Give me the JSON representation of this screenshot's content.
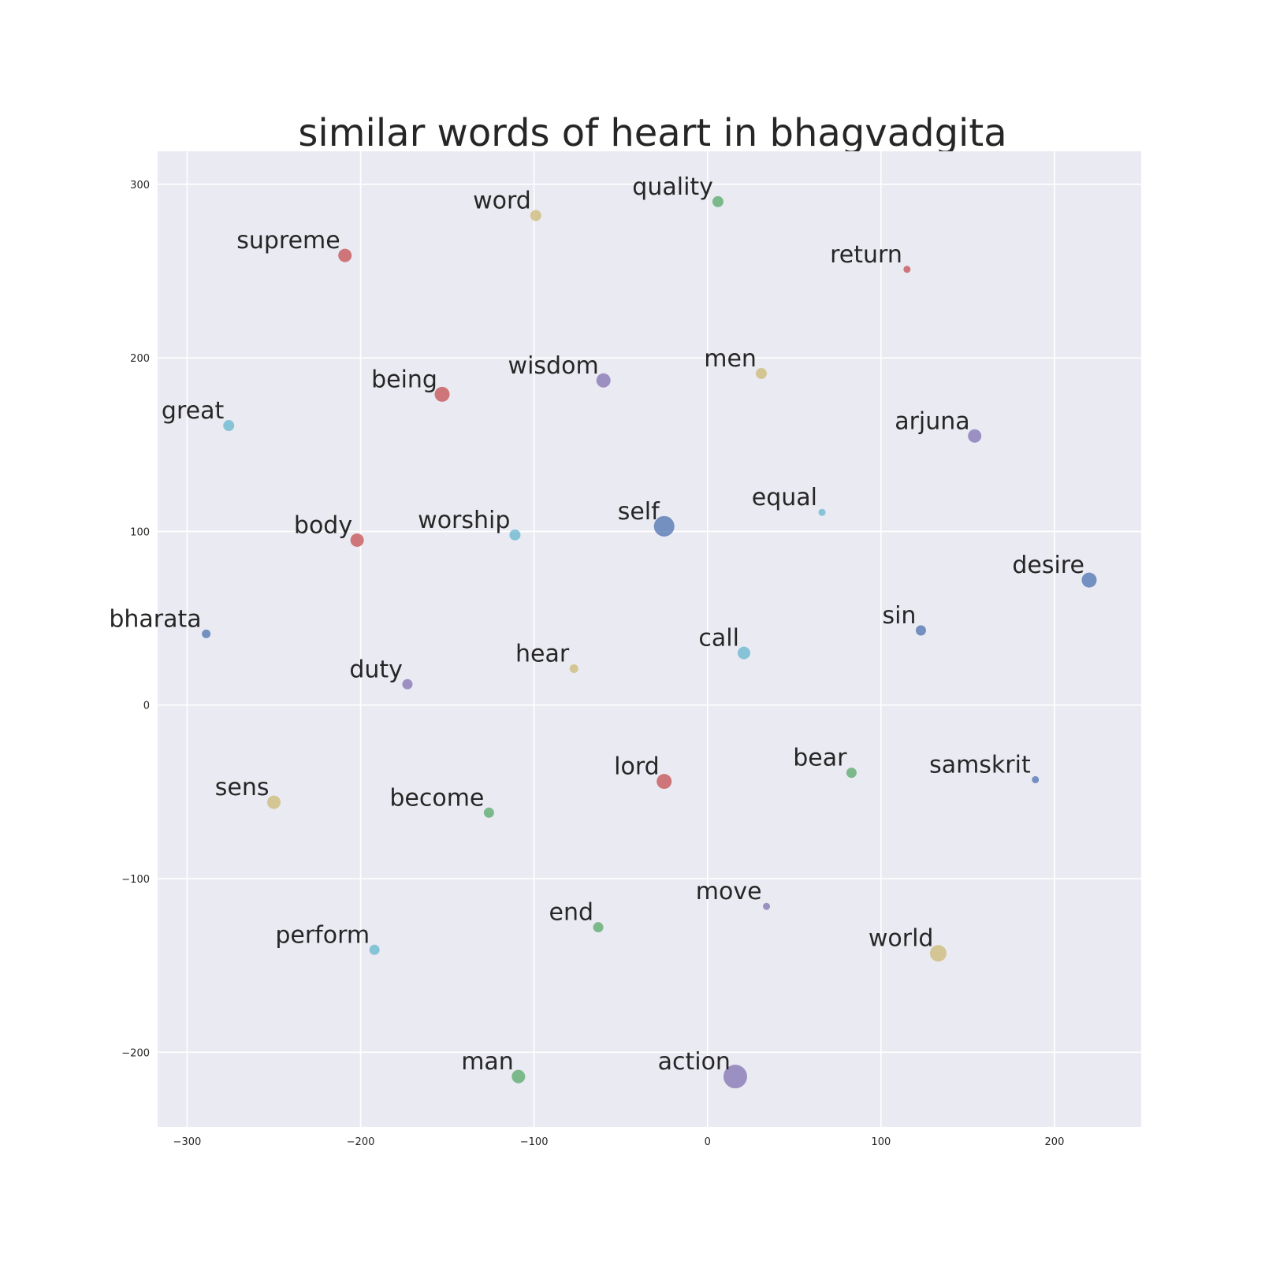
{
  "chart_data": {
    "type": "scatter",
    "title": "similar words of heart in bhagvadgita",
    "xlabel": "",
    "ylabel": "",
    "xlim": [
      -317,
      250
    ],
    "ylim": [
      -243,
      319
    ],
    "xticks": [
      -300,
      -200,
      -100,
      0,
      100,
      200
    ],
    "yticks": [
      -200,
      -100,
      0,
      100,
      200,
      300
    ],
    "grid": true,
    "palette": {
      "blue": "#4c72b0",
      "green": "#55a868",
      "red": "#c44e52",
      "purple": "#8172b2",
      "yellow": "#ccb974",
      "cyan": "#64b5cd",
      "background": "#eaeaf2"
    },
    "points": [
      {
        "label": "quality",
        "x": 6,
        "y": 290,
        "color": "green",
        "size": 14
      },
      {
        "label": "word",
        "x": -99,
        "y": 282,
        "color": "yellow",
        "size": 14
      },
      {
        "label": "supreme",
        "x": -209,
        "y": 259,
        "color": "red",
        "size": 17
      },
      {
        "label": "return",
        "x": 115,
        "y": 251,
        "color": "red",
        "size": 9
      },
      {
        "label": "wisdom",
        "x": -60,
        "y": 187,
        "color": "purple",
        "size": 18
      },
      {
        "label": "men",
        "x": 31,
        "y": 191,
        "color": "yellow",
        "size": 14
      },
      {
        "label": "being",
        "x": -153,
        "y": 179,
        "color": "red",
        "size": 19
      },
      {
        "label": "great",
        "x": -276,
        "y": 161,
        "color": "cyan",
        "size": 14
      },
      {
        "label": "arjuna",
        "x": 154,
        "y": 155,
        "color": "purple",
        "size": 17
      },
      {
        "label": "equal",
        "x": 66,
        "y": 111,
        "color": "cyan",
        "size": 9
      },
      {
        "label": "self",
        "x": -25,
        "y": 103,
        "color": "blue",
        "size": 26
      },
      {
        "label": "worship",
        "x": -111,
        "y": 98,
        "color": "cyan",
        "size": 14
      },
      {
        "label": "body",
        "x": -202,
        "y": 95,
        "color": "red",
        "size": 17
      },
      {
        "label": "desire",
        "x": 220,
        "y": 72,
        "color": "blue",
        "size": 19
      },
      {
        "label": "bharata",
        "x": -289,
        "y": 41,
        "color": "blue",
        "size": 11
      },
      {
        "label": "sin",
        "x": 123,
        "y": 43,
        "color": "blue",
        "size": 13
      },
      {
        "label": "call",
        "x": 21,
        "y": 30,
        "color": "cyan",
        "size": 16
      },
      {
        "label": "hear",
        "x": -77,
        "y": 21,
        "color": "yellow",
        "size": 11
      },
      {
        "label": "duty",
        "x": -173,
        "y": 12,
        "color": "purple",
        "size": 13
      },
      {
        "label": "lord",
        "x": -25,
        "y": -44,
        "color": "red",
        "size": 19
      },
      {
        "label": "bear",
        "x": 83,
        "y": -39,
        "color": "green",
        "size": 13
      },
      {
        "label": "samskrit",
        "x": 189,
        "y": -43,
        "color": "blue",
        "size": 9
      },
      {
        "label": "sens",
        "x": -250,
        "y": -56,
        "color": "yellow",
        "size": 17
      },
      {
        "label": "become",
        "x": -126,
        "y": -62,
        "color": "green",
        "size": 13
      },
      {
        "label": "move",
        "x": 34,
        "y": -116,
        "color": "purple",
        "size": 9
      },
      {
        "label": "end",
        "x": -63,
        "y": -128,
        "color": "green",
        "size": 13
      },
      {
        "label": "perform",
        "x": -192,
        "y": -141,
        "color": "cyan",
        "size": 13
      },
      {
        "label": "world",
        "x": 133,
        "y": -143,
        "color": "yellow",
        "size": 21
      },
      {
        "label": "man",
        "x": -109,
        "y": -214,
        "color": "green",
        "size": 17
      },
      {
        "label": "action",
        "x": 16,
        "y": -214,
        "color": "purple",
        "size": 30
      }
    ]
  }
}
